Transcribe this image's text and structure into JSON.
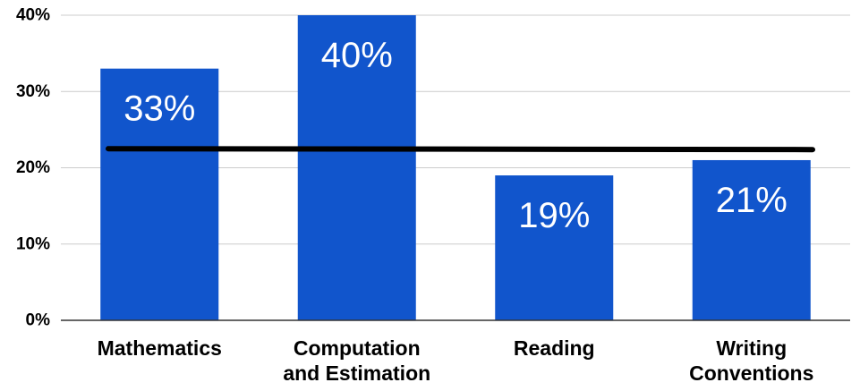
{
  "chart_data": {
    "type": "bar",
    "title": "",
    "xlabel": "",
    "ylabel": "",
    "categories": [
      [
        "Mathematics"
      ],
      [
        "Computation",
        "and Estimation"
      ],
      [
        "Reading"
      ],
      [
        "Writing",
        "Conventions"
      ]
    ],
    "values": [
      33,
      40,
      19,
      21
    ],
    "data_labels": [
      "33%",
      "40%",
      "19%",
      "21%"
    ],
    "ylim": [
      0,
      40
    ],
    "yticks": [
      0,
      10,
      20,
      30,
      40
    ],
    "ytick_labels": [
      "0%",
      "10%",
      "20%",
      "30%",
      "40%"
    ],
    "reference_line": {
      "value": 22.5
    },
    "grid": true,
    "legend": "none",
    "colors": {
      "bar": "#1155cc",
      "grid": "#cccccc",
      "axis": "#333333",
      "reference_line": "#000000",
      "bar_label": "#ffffff"
    }
  }
}
